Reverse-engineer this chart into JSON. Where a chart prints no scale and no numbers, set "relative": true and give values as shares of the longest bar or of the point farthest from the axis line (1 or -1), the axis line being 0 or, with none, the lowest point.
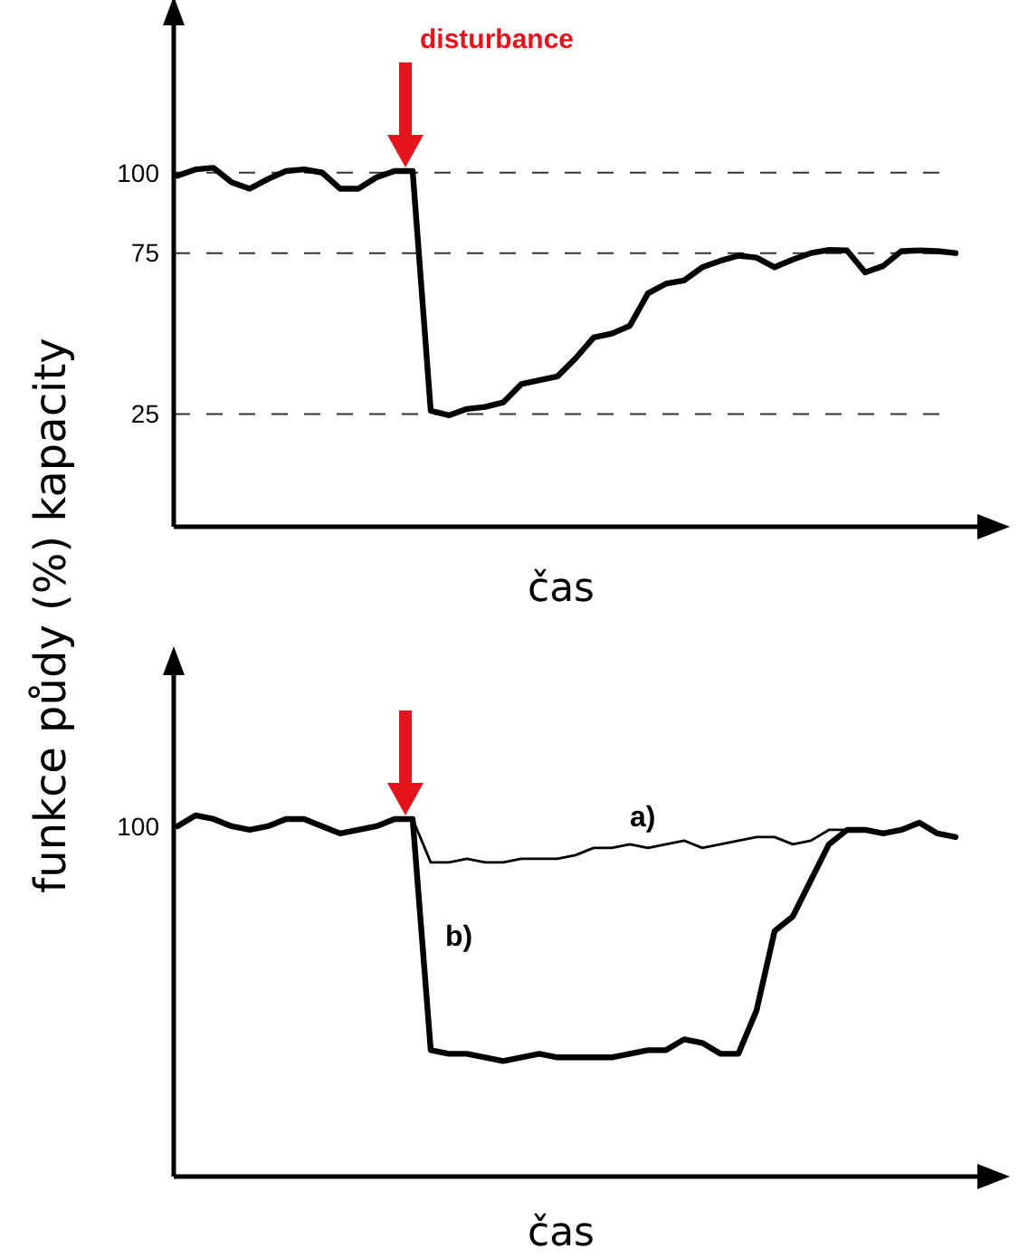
{
  "chart_data": [
    {
      "type": "line",
      "xlabel": "čas",
      "ylabel": "funkce půdy (%) kapacity",
      "categories": [
        null,
        null,
        null,
        null,
        null,
        null,
        null,
        null,
        null,
        null,
        null,
        null,
        null,
        null,
        null,
        null,
        null,
        null,
        null,
        null,
        null,
        null,
        null,
        null,
        null,
        null,
        null,
        null,
        null,
        null,
        null,
        null,
        null,
        null,
        null,
        null,
        null,
        null,
        null,
        null,
        null,
        null,
        null,
        null
      ],
      "series": [
        {
          "color": "#000000",
          "values": [
            99,
            101,
            101.5,
            97,
            95,
            98,
            100.5,
            101,
            100,
            95,
            95,
            98.5,
            100.5,
            100.5,
            26,
            24.6,
            26.6,
            27.2,
            28.6,
            34.3,
            35.5,
            36.7,
            42.3,
            48.8,
            50,
            52.4,
            62.5,
            65.5,
            66.5,
            70.6,
            72.6,
            74.2,
            73.6,
            70.6,
            73,
            75,
            76,
            75.8,
            69,
            71,
            75.6,
            75.8,
            75.6,
            75
          ]
        }
      ],
      "ylim": [
        -10,
        148
      ],
      "yticks": [
        25,
        75,
        100
      ],
      "grid": "y",
      "line_style": "solid",
      "tick_labels": "y",
      "annotations": [
        "disturbance"
      ]
    },
    {
      "type": "line",
      "xlabel": "čas",
      "categories": [
        null,
        null,
        null,
        null,
        null,
        null,
        null,
        null,
        null,
        null,
        null,
        null,
        null,
        null,
        null,
        null,
        null,
        null,
        null,
        null,
        null,
        null,
        null,
        null,
        null,
        null,
        null,
        null,
        null,
        null,
        null,
        null,
        null,
        null,
        null,
        null,
        null,
        null,
        null,
        null,
        null,
        null,
        null,
        null
      ],
      "series": [
        {
          "name": "a)",
          "color": "#000000",
          "values": [
            null,
            null,
            null,
            null,
            null,
            null,
            null,
            null,
            null,
            null,
            null,
            null,
            null,
            0.99,
            0.87,
            0.87,
            0.88,
            0.87,
            0.87,
            0.88,
            0.88,
            0.88,
            0.89,
            0.91,
            0.91,
            0.92,
            0.91,
            0.92,
            0.93,
            0.91,
            0.92,
            0.93,
            0.94,
            0.94,
            0.92,
            0.93,
            0.96,
            0.96,
            0.96,
            0.95,
            0.96,
            0.98,
            0.95,
            0.94
          ]
        },
        {
          "name": "b)",
          "color": "#000000",
          "values": [
            0.97,
            1,
            0.99,
            0.97,
            0.96,
            0.97,
            0.99,
            0.99,
            0.97,
            0.95,
            0.96,
            0.97,
            0.99,
            0.99,
            0.35,
            0.34,
            0.34,
            0.33,
            0.32,
            0.33,
            0.34,
            0.33,
            0.33,
            0.33,
            0.33,
            0.34,
            0.35,
            0.35,
            0.38,
            0.37,
            0.34,
            0.34,
            0.46,
            0.68,
            0.72,
            0.82,
            0.92,
            0.96,
            0.96,
            0.95,
            0.96,
            0.98,
            0.95,
            0.94
          ]
        }
      ],
      "relative": true,
      "line_style": "solid",
      "tick_labels": "y",
      "annotations": [
        "100"
      ]
    }
  ]
}
